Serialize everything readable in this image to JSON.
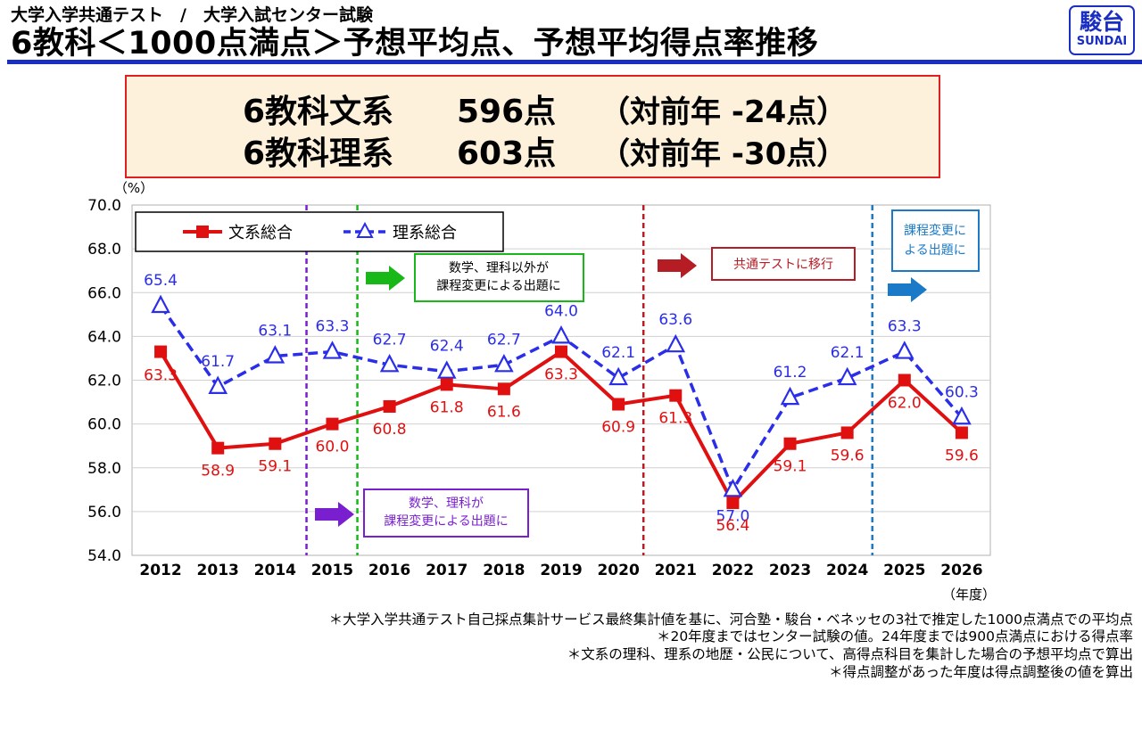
{
  "header": {
    "subtitle": "大学入学共通テスト　/　大学入試センター試験",
    "title": "6教科＜1000点満点＞予想平均点、予想平均得点率推移",
    "logo_kanji": "駿台",
    "logo_en": "SUNDAI"
  },
  "summary": {
    "rows": [
      {
        "label": "6教科文系",
        "score": "596点",
        "change": "（対前年 -24点）"
      },
      {
        "label": "6教科理系",
        "score": "603点",
        "change": "（対前年 -30点）"
      }
    ]
  },
  "chart_data": {
    "type": "line",
    "categories": [
      "2012",
      "2013",
      "2014",
      "2015",
      "2016",
      "2017",
      "2018",
      "2019",
      "2020",
      "2021",
      "2022",
      "2023",
      "2024",
      "2025",
      "2026"
    ],
    "series": [
      {
        "name": "文系総合",
        "color": "#e01010",
        "values": [
          63.3,
          58.9,
          59.1,
          60.0,
          60.8,
          61.8,
          61.6,
          63.3,
          60.9,
          61.3,
          56.4,
          59.1,
          59.6,
          62.0,
          59.6
        ]
      },
      {
        "name": "理系総合",
        "color": "#2a2ee8",
        "values": [
          65.4,
          61.7,
          63.1,
          63.3,
          62.7,
          62.4,
          62.7,
          64.0,
          62.1,
          63.6,
          57.0,
          61.2,
          62.1,
          63.3,
          60.3
        ]
      }
    ],
    "ylim": [
      54.0,
      70.0
    ],
    "yticks": [
      "54.0",
      "56.0",
      "58.0",
      "60.0",
      "62.0",
      "64.0",
      "66.0",
      "68.0",
      "70.0"
    ],
    "yunit": "（%）",
    "xunit": "（年度）",
    "grid": true,
    "legend": "top-left",
    "labels_in_percent": true,
    "annotations": [
      {
        "text": [
          "数学、理科が",
          "課程変更による出題に"
        ],
        "color": "#7a1fd0",
        "after": "2015"
      },
      {
        "text": [
          "数学、理科以外が",
          "課程変更による出題に"
        ],
        "color": "#18b818",
        "after": "2015"
      },
      {
        "text": [
          "共通テストに移行"
        ],
        "color": "#b51c24",
        "after": "2020"
      },
      {
        "text": [
          "課程変更に",
          "よる出題に"
        ],
        "color": "#1a7ac8",
        "after": "2024"
      }
    ]
  },
  "notes": [
    "＊大学入学共通テスト自己採点集計サービス最終集計値を基に、河合塾・駿台・ベネッセの3社で推定した1000点満点での平均点",
    "＊20年度まではセンター試験の値。24年度までは900点満点における得点率",
    "＊文系の理科、理系の地歴・公民について、高得点科目を集計した場合の予想平均点で算出",
    "＊得点調整があった年度は得点調整後の値を算出"
  ]
}
